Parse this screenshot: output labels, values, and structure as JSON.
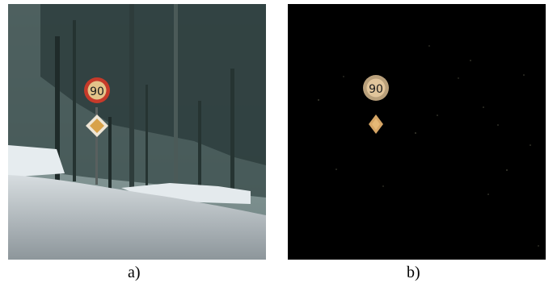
{
  "figure": {
    "panels": [
      {
        "id": "a",
        "caption": "a)",
        "content": "photo",
        "sign_text": "90"
      },
      {
        "id": "b",
        "caption": "b)",
        "content": "segmentation-mask",
        "sign_text": "90"
      }
    ]
  },
  "colors": {
    "sky": "#8fa3a7",
    "trees": "#2d3d3c",
    "snow": "#e8eef0",
    "sign_ring": "#c63a2a",
    "sign_fill": "#e3c48a",
    "diamond": "#d8a24a",
    "mask_bg": "#000000"
  }
}
